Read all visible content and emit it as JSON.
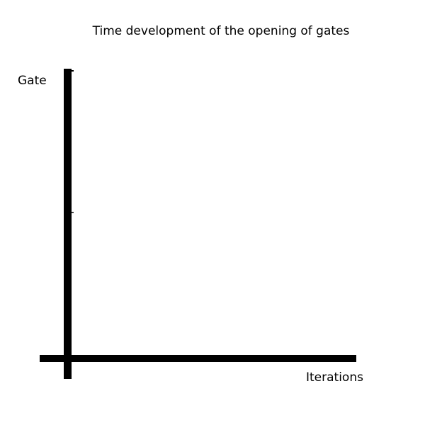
{
  "chart_data": {
    "type": "line",
    "title": "Time development of the opening of gates",
    "xlabel": "Iterations",
    "ylabel": "Gate",
    "series": [],
    "grid": false,
    "legend": "none"
  },
  "colors": {
    "axis": "#000000",
    "background": "#ffffff"
  }
}
